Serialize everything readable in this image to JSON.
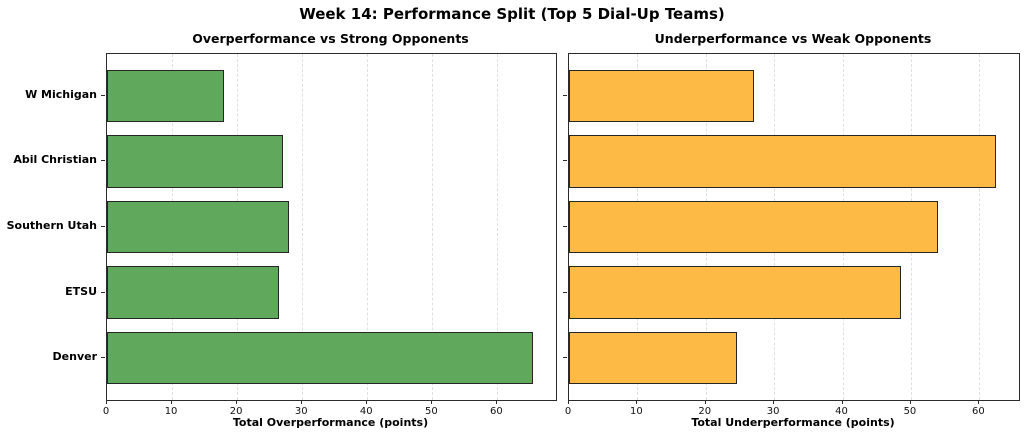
{
  "figure": {
    "title": "Week 14: Performance Split (Top 5 Dial-Up Teams)"
  },
  "colors": {
    "green_bar": "#5fa85c",
    "orange_bar": "#fdba45",
    "bar_edge": "#262626",
    "grid": "#e0e0e0",
    "spine": "#2b2b2b"
  },
  "chart_data": [
    {
      "type": "bar",
      "orientation": "horizontal",
      "title": "Overperformance vs Strong Opponents",
      "categories": [
        "W Michigan",
        "Abil Christian",
        "Southern Utah",
        "ETSU",
        "Denver"
      ],
      "values": [
        18,
        27,
        28,
        26.5,
        65.5
      ],
      "xlabel": "Total Overperformance (points)",
      "xticks": [
        0,
        10,
        20,
        30,
        40,
        50,
        60
      ],
      "xlim": [
        0,
        69
      ],
      "bar_color": "#5fa85c",
      "grid": true,
      "legend": "none",
      "show_category_labels": true
    },
    {
      "type": "bar",
      "orientation": "horizontal",
      "title": "Underperformance vs Weak Opponents",
      "categories": [
        "W Michigan",
        "Abil Christian",
        "Southern Utah",
        "ETSU",
        "Denver"
      ],
      "values": [
        27,
        62.5,
        54,
        48.5,
        24.5
      ],
      "xlabel": "Total Underperformance (points)",
      "xticks": [
        0,
        10,
        20,
        30,
        40,
        50,
        60
      ],
      "xlim": [
        0,
        65.8
      ],
      "bar_color": "#fdba45",
      "grid": true,
      "legend": "none",
      "show_category_labels": false
    }
  ]
}
